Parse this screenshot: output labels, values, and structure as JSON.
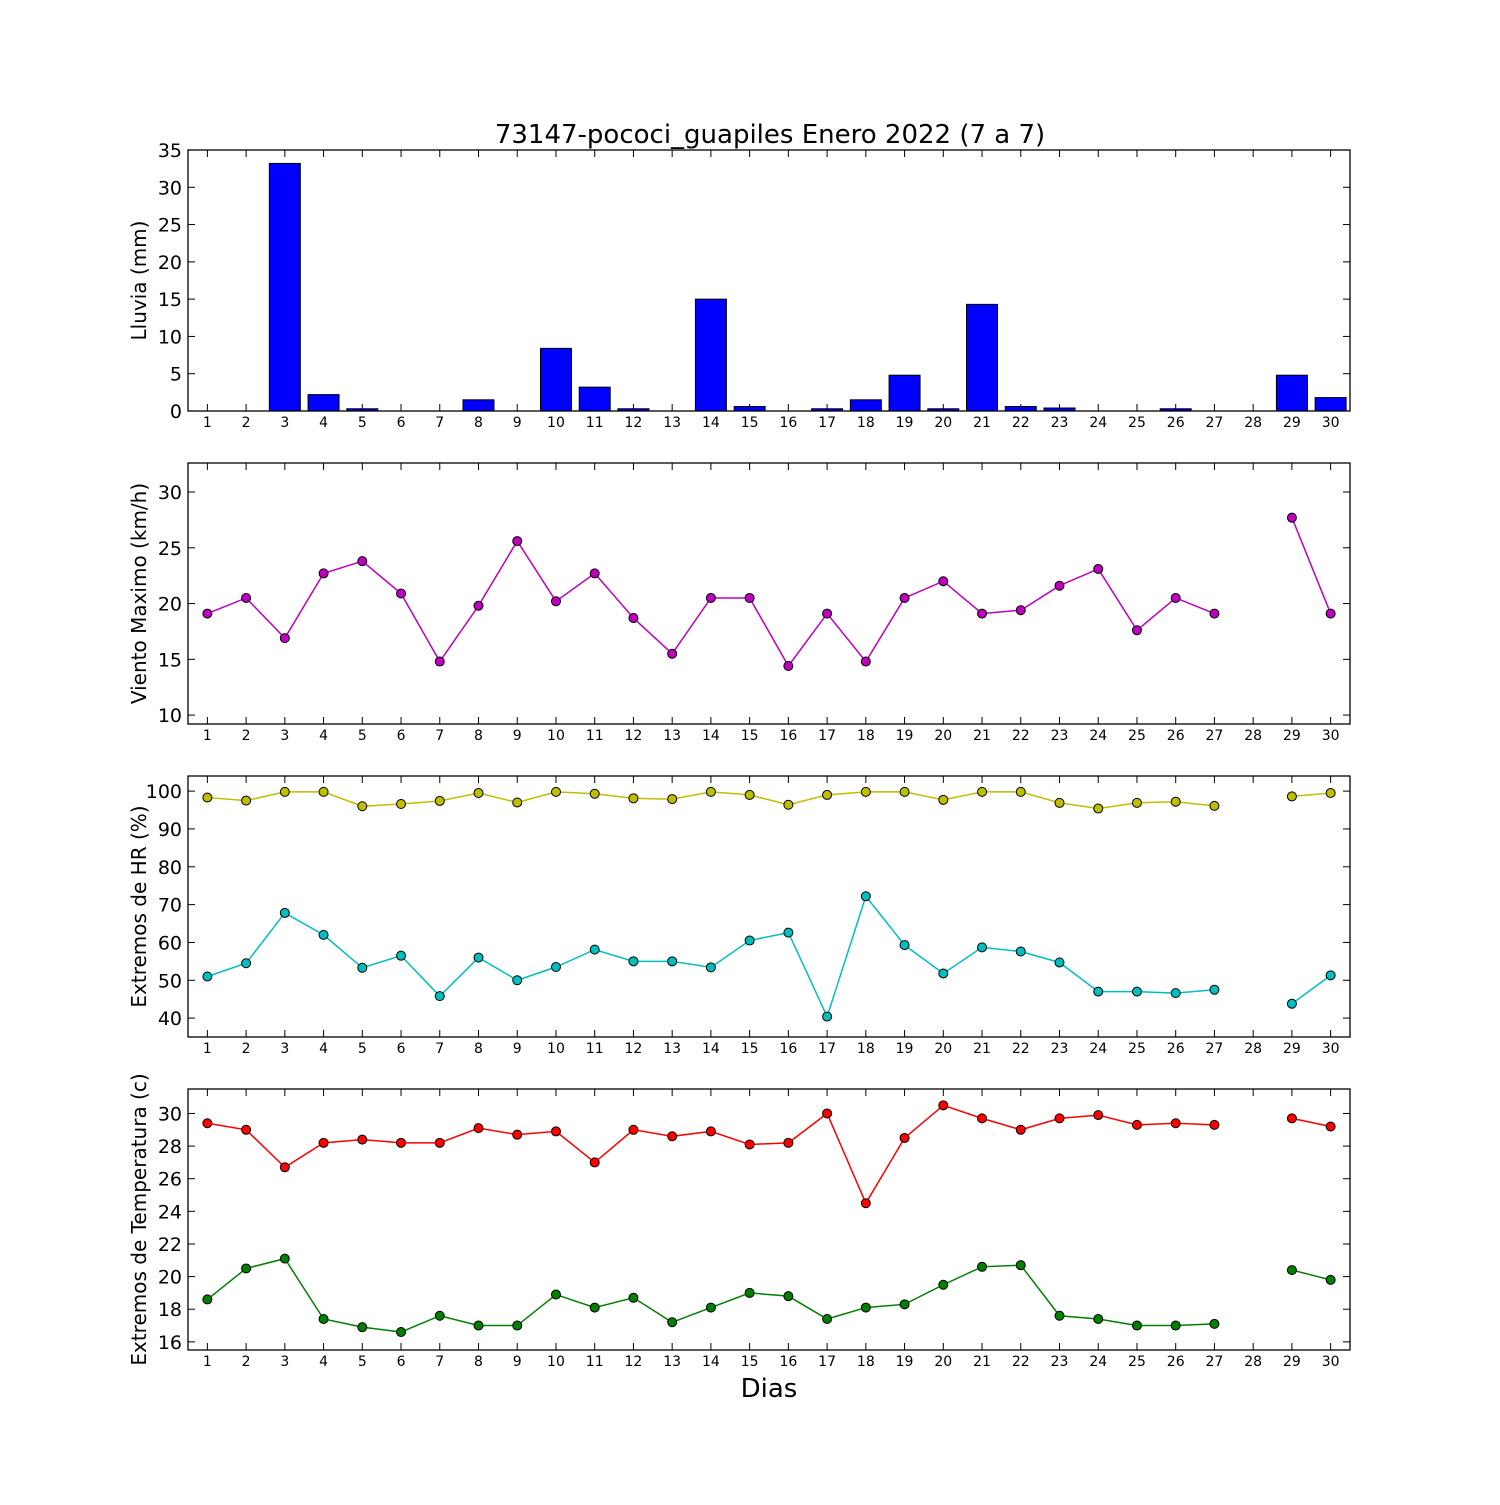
{
  "chart_data": {
    "title": "73147-pococi_guapiles Enero 2022  (7 a 7)",
    "xlabel": "Dias",
    "days": [
      1,
      2,
      3,
      4,
      5,
      6,
      7,
      8,
      9,
      10,
      11,
      12,
      13,
      14,
      15,
      16,
      17,
      18,
      19,
      20,
      21,
      22,
      23,
      24,
      25,
      26,
      27,
      28,
      29,
      30
    ],
    "xlim": [
      0.5,
      30.5
    ],
    "panels": [
      {
        "type": "bar",
        "ylabel": "Lluvia (mm)",
        "ylim": [
          0,
          35
        ],
        "yticks": [
          0,
          5,
          10,
          15,
          20,
          25,
          30,
          35
        ],
        "series": [
          {
            "color": "#0000ff",
            "values": [
              0,
              0,
              33.2,
              2.2,
              0.3,
              0,
              0,
              1.5,
              0,
              8.4,
              3.2,
              0.3,
              0,
              15,
              0.6,
              0,
              0.3,
              1.5,
              4.8,
              0.3,
              14.3,
              0.6,
              0.4,
              0,
              0,
              0.3,
              0,
              0,
              4.8,
              1.8
            ]
          }
        ]
      },
      {
        "type": "line",
        "ylabel": "Viento Maximo (km/h)",
        "ylim": [
          9.2,
          32.6
        ],
        "yticks": [
          10,
          15,
          20,
          25,
          30
        ],
        "series": [
          {
            "color": "#bf00bf",
            "values": [
              19.1,
              20.5,
              16.9,
              22.7,
              23.8,
              20.9,
              14.8,
              19.8,
              25.6,
              20.2,
              22.7,
              18.7,
              15.5,
              20.5,
              20.5,
              14.4,
              19.1,
              14.8,
              20.5,
              22.0,
              19.1,
              19.4,
              21.6,
              23.1,
              17.6,
              20.5,
              19.1,
              null,
              27.7,
              19.1
            ]
          }
        ]
      },
      {
        "type": "line",
        "ylabel": "Extremos de HR (%)",
        "ylim": [
          35,
          104
        ],
        "yticks": [
          40,
          50,
          60,
          70,
          80,
          90,
          100
        ],
        "series": [
          {
            "color": "#bfbf00",
            "values": [
              98.3,
              97.5,
              99.8,
              99.8,
              96.0,
              96.6,
              97.4,
              99.5,
              97.0,
              99.8,
              99.3,
              98.1,
              97.9,
              99.8,
              99.0,
              96.4,
              99.0,
              99.8,
              99.8,
              97.7,
              99.8,
              99.8,
              96.9,
              95.4,
              96.9,
              97.2,
              96.1,
              null,
              98.6,
              99.5
            ]
          },
          {
            "color": "#00bfbf",
            "values": [
              51.0,
              54.5,
              67.8,
              62.0,
              53.3,
              56.5,
              45.8,
              56.0,
              50.0,
              53.5,
              58.1,
              55.0,
              55.0,
              53.4,
              60.5,
              62.6,
              40.4,
              72.2,
              59.3,
              51.8,
              58.7,
              57.6,
              54.7,
              47.0,
              47.0,
              46.6,
              47.5,
              null,
              43.8,
              51.3
            ]
          }
        ]
      },
      {
        "type": "line",
        "ylabel": "Extremos de Temperatura (c)",
        "ylim": [
          15.5,
          31.5
        ],
        "yticks": [
          16,
          18,
          20,
          22,
          24,
          26,
          28,
          30
        ],
        "series": [
          {
            "color": "#ff0000",
            "values": [
              29.4,
              29.0,
              26.7,
              28.2,
              28.4,
              28.2,
              28.2,
              29.1,
              28.7,
              28.9,
              27.0,
              29.0,
              28.6,
              28.9,
              28.1,
              28.2,
              30.0,
              24.5,
              28.5,
              30.5,
              29.7,
              29.0,
              29.7,
              29.9,
              29.3,
              29.4,
              29.3,
              null,
              29.7,
              29.2
            ]
          },
          {
            "color": "#008000",
            "values": [
              18.6,
              20.5,
              21.1,
              17.4,
              16.9,
              16.6,
              17.6,
              17.0,
              17.0,
              18.9,
              18.1,
              18.7,
              17.2,
              18.1,
              19.0,
              18.8,
              17.4,
              18.1,
              18.3,
              19.5,
              20.6,
              20.7,
              17.6,
              17.4,
              17.0,
              17.0,
              17.1,
              null,
              20.4,
              19.8
            ]
          }
        ]
      }
    ]
  }
}
